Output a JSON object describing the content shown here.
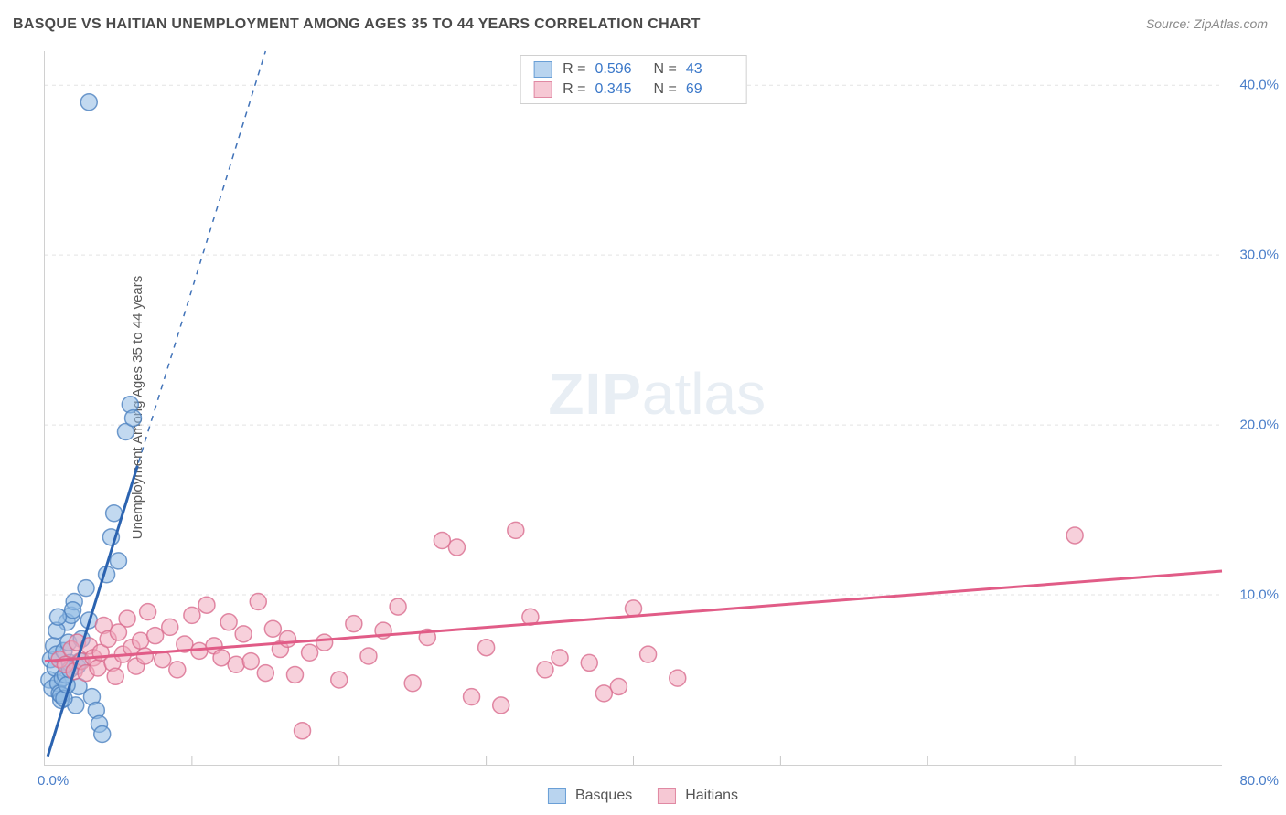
{
  "title": "BASQUE VS HAITIAN UNEMPLOYMENT AMONG AGES 35 TO 44 YEARS CORRELATION CHART",
  "source_label": "Source:",
  "source_value": "ZipAtlas.com",
  "ylabel": "Unemployment Among Ages 35 to 44 years",
  "watermark_zip": "ZIP",
  "watermark_atlas": "atlas",
  "chart": {
    "type": "scatter-with-regression",
    "background_color": "#ffffff",
    "grid_color": "#e3e3e3",
    "axis_color": "#d0d0d0",
    "tick_color": "#c6c6c6",
    "tick_text_color": "#4a7ec9",
    "tick_fontsize": 15,
    "label_fontsize": 15,
    "label_color": "#5a5a5a",
    "xlim": [
      0,
      80
    ],
    "ylim": [
      0,
      42
    ],
    "xtick_step": 10,
    "y_ticks": [
      10,
      20,
      30,
      40
    ],
    "y_tick_labels": [
      "10.0%",
      "20.0%",
      "30.0%",
      "40.0%"
    ],
    "x_origin_label": "0.0%",
    "x_end_label": "80.0%",
    "marker_radius": 9,
    "marker_opacity": 0.55,
    "line_width": 3,
    "series": [
      {
        "name": "Basques",
        "swatch_fill": "#b9d4ef",
        "swatch_stroke": "#6a9fd6",
        "marker_fill": "#8fb9e3",
        "marker_stroke": "#4d82c0",
        "line_color": "#2b63b0",
        "line_dash": "6 6",
        "solid_segment_xmax": 6.3,
        "R": "0.596",
        "N": "43",
        "regression": {
          "x1": 0.2,
          "y1": 0.5,
          "x2": 15,
          "y2": 42
        },
        "points": [
          [
            0.3,
            5.0
          ],
          [
            0.4,
            6.2
          ],
          [
            0.5,
            4.5
          ],
          [
            0.6,
            7.0
          ],
          [
            0.7,
            5.7
          ],
          [
            0.8,
            6.5
          ],
          [
            0.9,
            4.8
          ],
          [
            1.0,
            4.2
          ],
          [
            1.1,
            3.8
          ],
          [
            1.2,
            5.1
          ],
          [
            1.3,
            6.7
          ],
          [
            1.4,
            5.3
          ],
          [
            1.5,
            8.4
          ],
          [
            1.6,
            7.2
          ],
          [
            1.7,
            6.0
          ],
          [
            1.8,
            8.8
          ],
          [
            2.0,
            9.6
          ],
          [
            2.2,
            5.8
          ],
          [
            2.4,
            6.1
          ],
          [
            2.5,
            7.4
          ],
          [
            2.8,
            10.4
          ],
          [
            3.0,
            8.5
          ],
          [
            3.2,
            4.0
          ],
          [
            3.5,
            3.2
          ],
          [
            3.7,
            2.4
          ],
          [
            3.9,
            1.8
          ],
          [
            4.2,
            11.2
          ],
          [
            4.5,
            13.4
          ],
          [
            4.7,
            14.8
          ],
          [
            5.0,
            12.0
          ],
          [
            5.5,
            19.6
          ],
          [
            5.8,
            21.2
          ],
          [
            6.0,
            20.4
          ],
          [
            2.1,
            3.5
          ],
          [
            2.3,
            4.6
          ],
          [
            1.9,
            9.1
          ],
          [
            0.8,
            7.9
          ],
          [
            0.9,
            8.7
          ],
          [
            1.1,
            4.1
          ],
          [
            1.3,
            3.9
          ],
          [
            1.5,
            4.7
          ],
          [
            1.7,
            5.6
          ],
          [
            3.0,
            39.0
          ]
        ]
      },
      {
        "name": "Haitians",
        "swatch_fill": "#f6c8d4",
        "swatch_stroke": "#e089a3",
        "marker_fill": "#f1a9bd",
        "marker_stroke": "#d96d8f",
        "line_color": "#e15c87",
        "line_dash": "none",
        "R": "0.345",
        "N": "69",
        "regression": {
          "x1": 0,
          "y1": 6.1,
          "x2": 80,
          "y2": 11.4
        },
        "points": [
          [
            1,
            6.2
          ],
          [
            1.4,
            5.9
          ],
          [
            1.8,
            6.8
          ],
          [
            2.0,
            5.5
          ],
          [
            2.2,
            7.2
          ],
          [
            2.5,
            6.1
          ],
          [
            2.8,
            5.4
          ],
          [
            3.0,
            7.0
          ],
          [
            3.3,
            6.3
          ],
          [
            3.6,
            5.7
          ],
          [
            3.8,
            6.6
          ],
          [
            4.0,
            8.2
          ],
          [
            4.3,
            7.4
          ],
          [
            4.6,
            6.0
          ],
          [
            4.8,
            5.2
          ],
          [
            5.0,
            7.8
          ],
          [
            5.3,
            6.5
          ],
          [
            5.6,
            8.6
          ],
          [
            5.9,
            6.9
          ],
          [
            6.2,
            5.8
          ],
          [
            6.5,
            7.3
          ],
          [
            6.8,
            6.4
          ],
          [
            7.0,
            9.0
          ],
          [
            7.5,
            7.6
          ],
          [
            8.0,
            6.2
          ],
          [
            8.5,
            8.1
          ],
          [
            9.0,
            5.6
          ],
          [
            9.5,
            7.1
          ],
          [
            10.0,
            8.8
          ],
          [
            10.5,
            6.7
          ],
          [
            11.0,
            9.4
          ],
          [
            11.5,
            7.0
          ],
          [
            12.0,
            6.3
          ],
          [
            12.5,
            8.4
          ],
          [
            13.0,
            5.9
          ],
          [
            13.5,
            7.7
          ],
          [
            14.0,
            6.1
          ],
          [
            14.5,
            9.6
          ],
          [
            15.0,
            5.4
          ],
          [
            15.5,
            8.0
          ],
          [
            16.0,
            6.8
          ],
          [
            16.5,
            7.4
          ],
          [
            17.0,
            5.3
          ],
          [
            17.5,
            2.0
          ],
          [
            18.0,
            6.6
          ],
          [
            19.0,
            7.2
          ],
          [
            20.0,
            5.0
          ],
          [
            21.0,
            8.3
          ],
          [
            22.0,
            6.4
          ],
          [
            23.0,
            7.9
          ],
          [
            24.0,
            9.3
          ],
          [
            25.0,
            4.8
          ],
          [
            26.0,
            7.5
          ],
          [
            27.0,
            13.2
          ],
          [
            28.0,
            12.8
          ],
          [
            29.0,
            4.0
          ],
          [
            30.0,
            6.9
          ],
          [
            31.0,
            3.5
          ],
          [
            32.0,
            13.8
          ],
          [
            33.0,
            8.7
          ],
          [
            34.0,
            5.6
          ],
          [
            35.0,
            6.3
          ],
          [
            37.0,
            6.0
          ],
          [
            39.0,
            4.6
          ],
          [
            40.0,
            9.2
          ],
          [
            41.0,
            6.5
          ],
          [
            43.0,
            5.1
          ],
          [
            70.0,
            13.5
          ],
          [
            38.0,
            4.2
          ]
        ]
      }
    ],
    "stats_box": {
      "fill": "#ffffff",
      "border": "#d0d0d0",
      "text_color": "#555555",
      "value_color": "#3b78c9",
      "fontsize": 16,
      "R_label": "R =",
      "N_label": "N ="
    },
    "legend": {
      "fontsize": 16,
      "text_color": "#555555"
    }
  }
}
